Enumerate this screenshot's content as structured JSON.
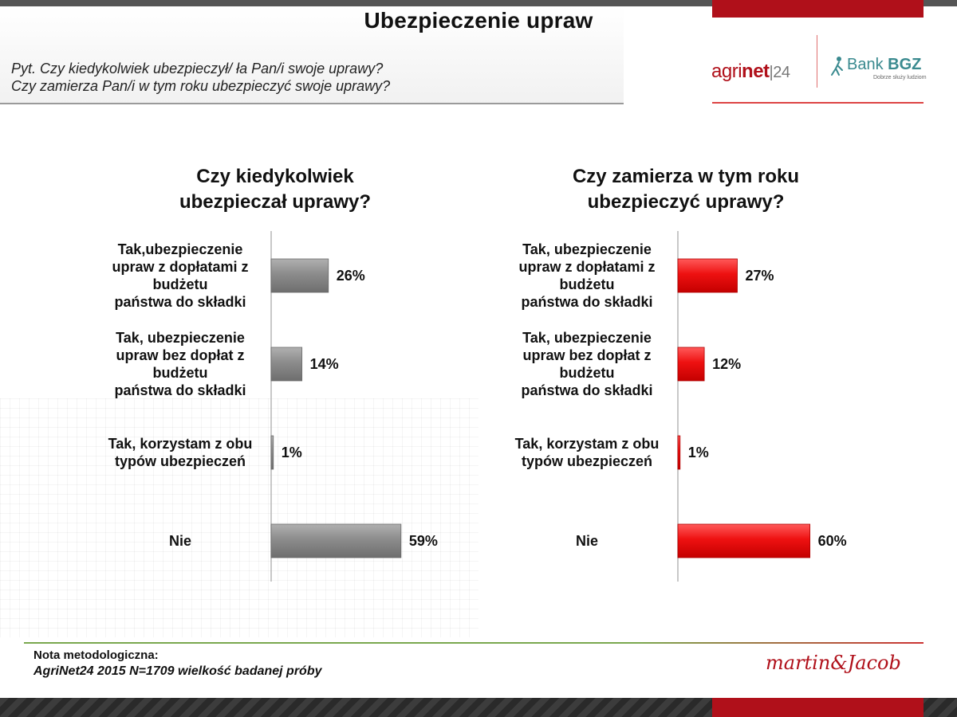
{
  "page": {
    "title": "Ubezpieczenie upraw",
    "question_line1": "Pyt. Czy kiedykolwiek ubezpieczył/ ła Pan/i swoje uprawy?",
    "question_line2": "Czy zamierza Pan/i w tym roku ubezpieczyć swoje uprawy?"
  },
  "logos": {
    "agrinet_prefix": "agri",
    "agrinet_bold": "net",
    "agrinet_num": "24",
    "bank_name": "Bank",
    "bank_bold": "BGZ",
    "bank_tagline": "Dobrze służy ludziom"
  },
  "footer": {
    "note_heading": "Nota metodologiczna:",
    "note_body": "AgriNet24 2015 N=1709 wielkość badanej próby",
    "signature": "martin&Jacob"
  },
  "colors": {
    "left_bar": "#8c8c8c",
    "right_bar": "#ee1111",
    "brand_red": "#b0101a"
  },
  "chart_data": [
    {
      "type": "bar",
      "orientation": "horizontal",
      "title_line1": "Czy kiedykolwiek",
      "title_line2": "ubezpieczał uprawy?",
      "categories": [
        [
          "Tak,ubezpieczenie",
          "upraw z dopłatami z",
          "budżetu",
          "państwa do składki"
        ],
        [
          "Tak, ubezpieczenie",
          "upraw bez dopłat z",
          "budżetu",
          "państwa do składki"
        ],
        [
          "Tak, korzystam z obu",
          "typów ubezpieczeń"
        ],
        [
          "Nie"
        ]
      ],
      "values": [
        26,
        14,
        1,
        59
      ],
      "value_labels": [
        "26%",
        "14%",
        "1%",
        "59%"
      ],
      "xlim": [
        0,
        100
      ],
      "bar_color": "#8c8c8c"
    },
    {
      "type": "bar",
      "orientation": "horizontal",
      "title_line1": "Czy zamierza w tym roku",
      "title_line2": "ubezpieczyć uprawy?",
      "categories": [
        [
          "Tak, ubezpieczenie",
          "upraw z dopłatami z",
          "budżetu",
          "państwa do składki"
        ],
        [
          "Tak, ubezpieczenie",
          "upraw bez dopłat z",
          "budżetu",
          "państwa do składki"
        ],
        [
          "Tak, korzystam z obu",
          "typów ubezpieczeń"
        ],
        [
          "Nie"
        ]
      ],
      "values": [
        27,
        12,
        1,
        60
      ],
      "value_labels": [
        "27%",
        "12%",
        "1%",
        "60%"
      ],
      "xlim": [
        0,
        100
      ],
      "bar_color": "#ee1111"
    }
  ]
}
